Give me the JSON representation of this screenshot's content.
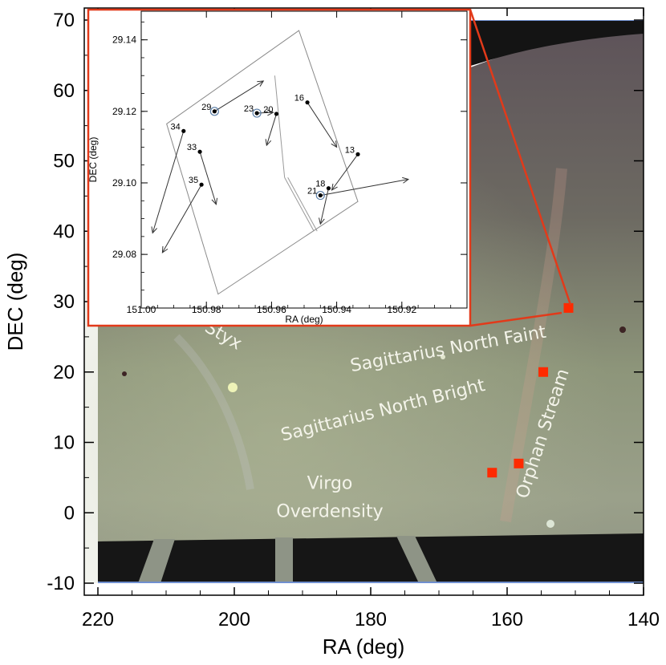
{
  "chart_data": [
    {
      "type": "image-map",
      "xlabel": "RA (deg)",
      "ylabel": "DEC (deg)",
      "xlim": [
        220,
        140
      ],
      "ylim": [
        -10,
        70
      ],
      "x_ticks": [
        220,
        200,
        180,
        160,
        140
      ],
      "y_ticks": [
        70,
        60,
        50,
        40,
        30,
        20,
        10,
        0,
        -10
      ],
      "annotations": [
        {
          "text": "Styx",
          "ra": 202,
          "dec": 24.5,
          "rotate": 30
        },
        {
          "text": "Sagittarius North Faint",
          "ra": 168.5,
          "dec": 22.5,
          "rotate": -10
        },
        {
          "text": "Sagittarius North Bright",
          "ra": 178,
          "dec": 13.8,
          "rotate": -14
        },
        {
          "text": "Orphan Stream",
          "ra": 154,
          "dec": 11,
          "rotate": -72
        },
        {
          "text": "Virgo",
          "ra": 186,
          "dec": 3.4,
          "rotate": 0
        },
        {
          "text": "Overdensity",
          "ra": 186,
          "dec": -0.6,
          "rotate": 0
        }
      ],
      "fields": [
        {
          "ra": 151,
          "dec": 29.1
        },
        {
          "ra": 154.7,
          "dec": 20
        },
        {
          "ra": 158.3,
          "dec": 7
        },
        {
          "ra": 162.2,
          "dec": 5.7
        }
      ],
      "colors": {
        "field_marker": "#ff2a00",
        "inset_frame": "#e23a1a"
      }
    },
    {
      "type": "scatter",
      "xlabel": "RA (deg)",
      "ylabel": "DEC (deg)",
      "xlim": [
        151.0,
        150.9
      ],
      "ylim": [
        29.065,
        29.148
      ],
      "x_ticks": [
        "151.00",
        "150.98",
        "150.96",
        "150.94",
        "150.92"
      ],
      "x_tick_values": [
        151.0,
        150.98,
        150.96,
        150.94,
        150.92
      ],
      "y_ticks": [
        "29.14",
        "29.12",
        "29.10",
        "29.08"
      ],
      "y_tick_values": [
        29.14,
        29.12,
        29.1,
        29.08
      ],
      "footprint": [
        [
          150.9922,
          29.1165
        ],
        [
          150.9516,
          29.1426
        ],
        [
          150.9335,
          29.0948
        ],
        [
          150.9764,
          29.0689
        ]
      ],
      "divider": [
        [
          150.9555,
          29.1015
        ],
        [
          150.9465,
          29.0865
        ]
      ],
      "stars": [
        {
          "label": "29",
          "ra": 150.9775,
          "dec": 29.12,
          "end_ra": 150.9625,
          "end_dec": 29.1285,
          "circled": true
        },
        {
          "label": "23",
          "ra": 150.9645,
          "dec": 29.1195,
          "end_ra": 150.9595,
          "end_dec": 29.1197,
          "circled": true
        },
        {
          "label": "20",
          "ra": 150.9585,
          "dec": 29.1193,
          "end_ra": 150.9615,
          "end_dec": 29.1105,
          "circled": false
        },
        {
          "label": "16",
          "ra": 150.949,
          "dec": 29.1225,
          "end_ra": 150.94,
          "end_dec": 29.11,
          "circled": false
        },
        {
          "label": "13",
          "ra": 150.9335,
          "dec": 29.108,
          "end_ra": 150.9415,
          "end_dec": 29.098,
          "circled": false
        },
        {
          "label": "34",
          "ra": 150.987,
          "dec": 29.1145,
          "end_ra": 150.9965,
          "end_dec": 29.086,
          "circled": false
        },
        {
          "label": "33",
          "ra": 150.982,
          "dec": 29.1087,
          "end_ra": 150.977,
          "end_dec": 29.094,
          "circled": false
        },
        {
          "label": "35",
          "ra": 150.9815,
          "dec": 29.0995,
          "end_ra": 150.9935,
          "end_dec": 29.0805,
          "circled": false
        },
        {
          "label": "18",
          "ra": 150.9425,
          "dec": 29.0985,
          "end_ra": 150.945,
          "end_dec": 29.0885,
          "circled": false
        },
        {
          "label": "21",
          "ra": 150.945,
          "dec": 29.0965,
          "end_ra": 150.918,
          "end_dec": 29.101,
          "circled": true
        }
      ]
    }
  ]
}
